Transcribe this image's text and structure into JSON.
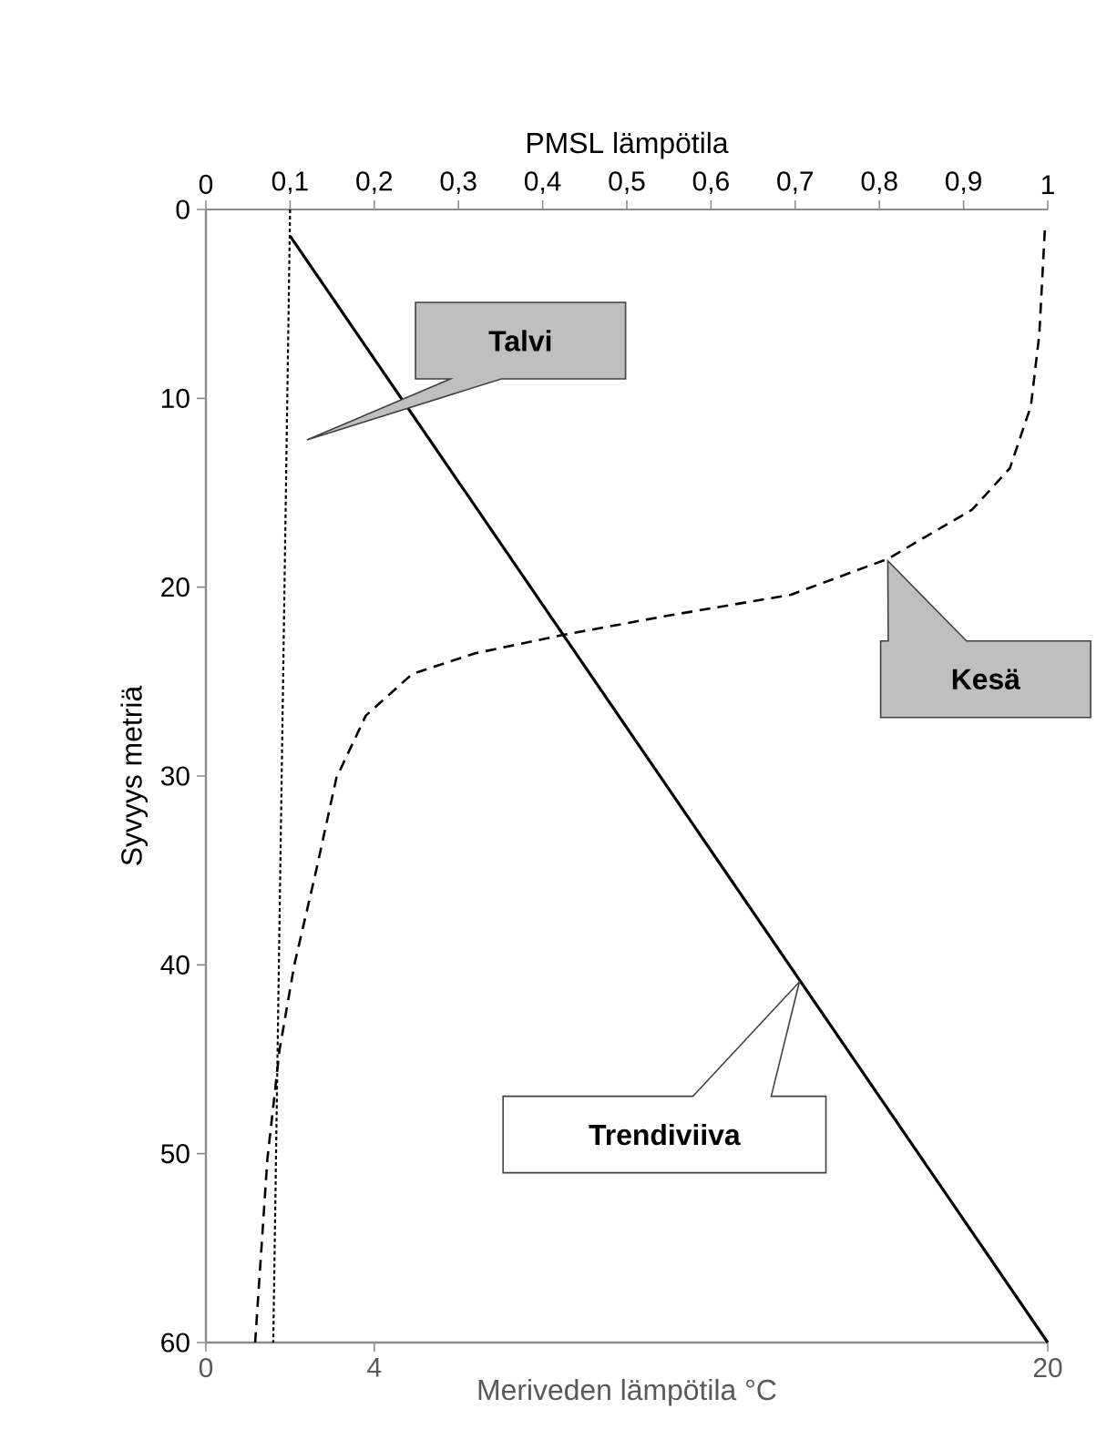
{
  "chart_data": {
    "type": "line",
    "xlabel": "Meriveden lämpötila °C",
    "ylabel": "Syvyys metriä",
    "x2label": "PMSL lämpötila",
    "xlim": [
      0,
      20
    ],
    "xticks": [
      0,
      4,
      20
    ],
    "x2lim": [
      0,
      1
    ],
    "x2ticks": [
      0,
      {
        "value": 0.1,
        "label": "0,1"
      },
      {
        "value": 0.2,
        "label": "0,2"
      },
      {
        "value": 0.3,
        "label": "0,3"
      },
      {
        "value": 0.4,
        "label": "0,4"
      },
      {
        "value": 0.5,
        "label": "0,5"
      },
      {
        "value": 0.6,
        "label": "0,6"
      },
      {
        "value": 0.7,
        "label": "0,7"
      },
      {
        "value": 0.8,
        "label": "0,8"
      },
      {
        "value": 0.9,
        "label": "0,9"
      },
      1
    ],
    "ylim": [
      60,
      0
    ],
    "yticks": [
      0,
      10,
      20,
      30,
      40,
      50,
      60
    ],
    "annotations": [
      "Talvi",
      "Kesä",
      "Trendiviiva"
    ],
    "grid": false,
    "marker": "none",
    "series": [
      {
        "color": "#000000",
        "line_style": "dotted",
        "x": [
          2.0,
          1.6
        ],
        "values": [
          0,
          60
        ]
      },
      {
        "color": "#000000",
        "line_style": "dashed",
        "x": [
          19.93,
          19.8,
          19.6,
          19.1,
          18.2,
          16.2,
          13.9,
          11.0,
          8.55,
          6.4,
          4.9,
          3.8,
          3.1,
          2.6,
          2.1,
          1.75,
          1.46,
          1.17
        ],
        "values": [
          1.1,
          6.6,
          10.4,
          13.7,
          15.9,
          18.5,
          20.4,
          21.5,
          22.5,
          23.5,
          24.6,
          26.8,
          30.1,
          35.2,
          40.0,
          44.5,
          50.3,
          60
        ]
      },
      {
        "color": "#000000",
        "line_style": "solid",
        "x": [
          2.0,
          20
        ],
        "values": [
          1.4,
          60
        ]
      }
    ]
  }
}
